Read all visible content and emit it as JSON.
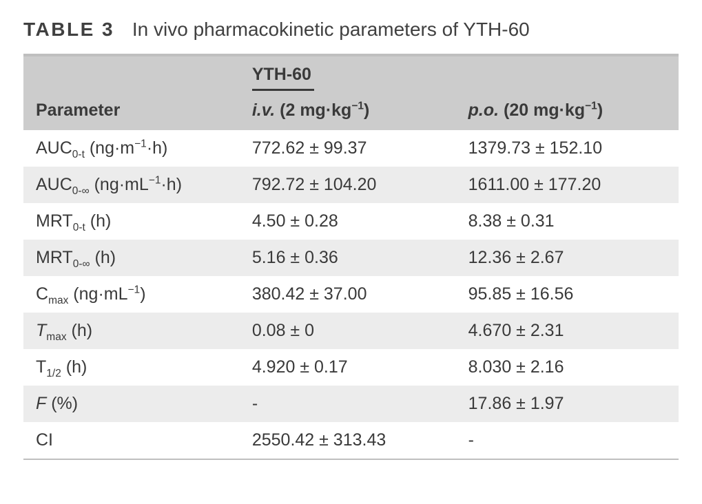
{
  "caption": {
    "label": "TABLE 3",
    "text": "In vivo pharmacokinetic parameters of YTH-60"
  },
  "table": {
    "span_header": {
      "col1": "",
      "col2_html": "YTH-60",
      "col3_html": ""
    },
    "column_headers": {
      "col1_html": "Parameter",
      "col2_html": "<span class='hdr'>i.v.</span> (2 mg·kg<sup>−1</sup>)",
      "col3_html": "<span class='hdr'>p.o.</span> (20 mg·kg<sup>−1</sup>)"
    },
    "rows": [
      {
        "param_html": "AUC<sub>0-t</sub> (ng·m<sup>−1</sup>·h)",
        "iv": "772.62 ± 99.37",
        "po": "1379.73 ± 152.10"
      },
      {
        "param_html": "AUC<sub>0-∞</sub> (ng·mL<sup>−1</sup>·h)",
        "iv": "792.72 ± 104.20",
        "po": "1611.00 ± 177.20"
      },
      {
        "param_html": "MRT<sub>0-t</sub> (h)",
        "iv": "4.50 ± 0.28",
        "po": "8.38 ± 0.31"
      },
      {
        "param_html": "MRT<sub>0-∞</sub> (h)",
        "iv": "5.16 ± 0.36",
        "po": "12.36 ± 2.67"
      },
      {
        "param_html": "C<sub>max</sub> (ng·mL<sup>−1</sup>)",
        "iv": "380.42 ± 37.00",
        "po": "95.85 ± 16.56"
      },
      {
        "param_html": "<span class='ital'>T</span><sub>max</sub> (h)",
        "iv": "0.08 ± 0",
        "po": "4.670 ± 2.31"
      },
      {
        "param_html": "T<sub>1/2</sub> (h)",
        "iv": "4.920 ± 0.17",
        "po": "8.030 ± 2.16"
      },
      {
        "param_html": "<span class='ital'>F</span> (%)",
        "iv": "-",
        "po": "17.86 ± 1.97"
      },
      {
        "param_html": "CI",
        "iv": "2550.42 ± 313.43",
        "po": "-"
      }
    ]
  },
  "styles": {
    "header_bg": "#cccccc",
    "row_alt_bg": "#ececec",
    "border_color": "#bfbfbf",
    "text_color": "#3a3a3a",
    "font_size_caption": 28,
    "font_size_cell": 25
  }
}
